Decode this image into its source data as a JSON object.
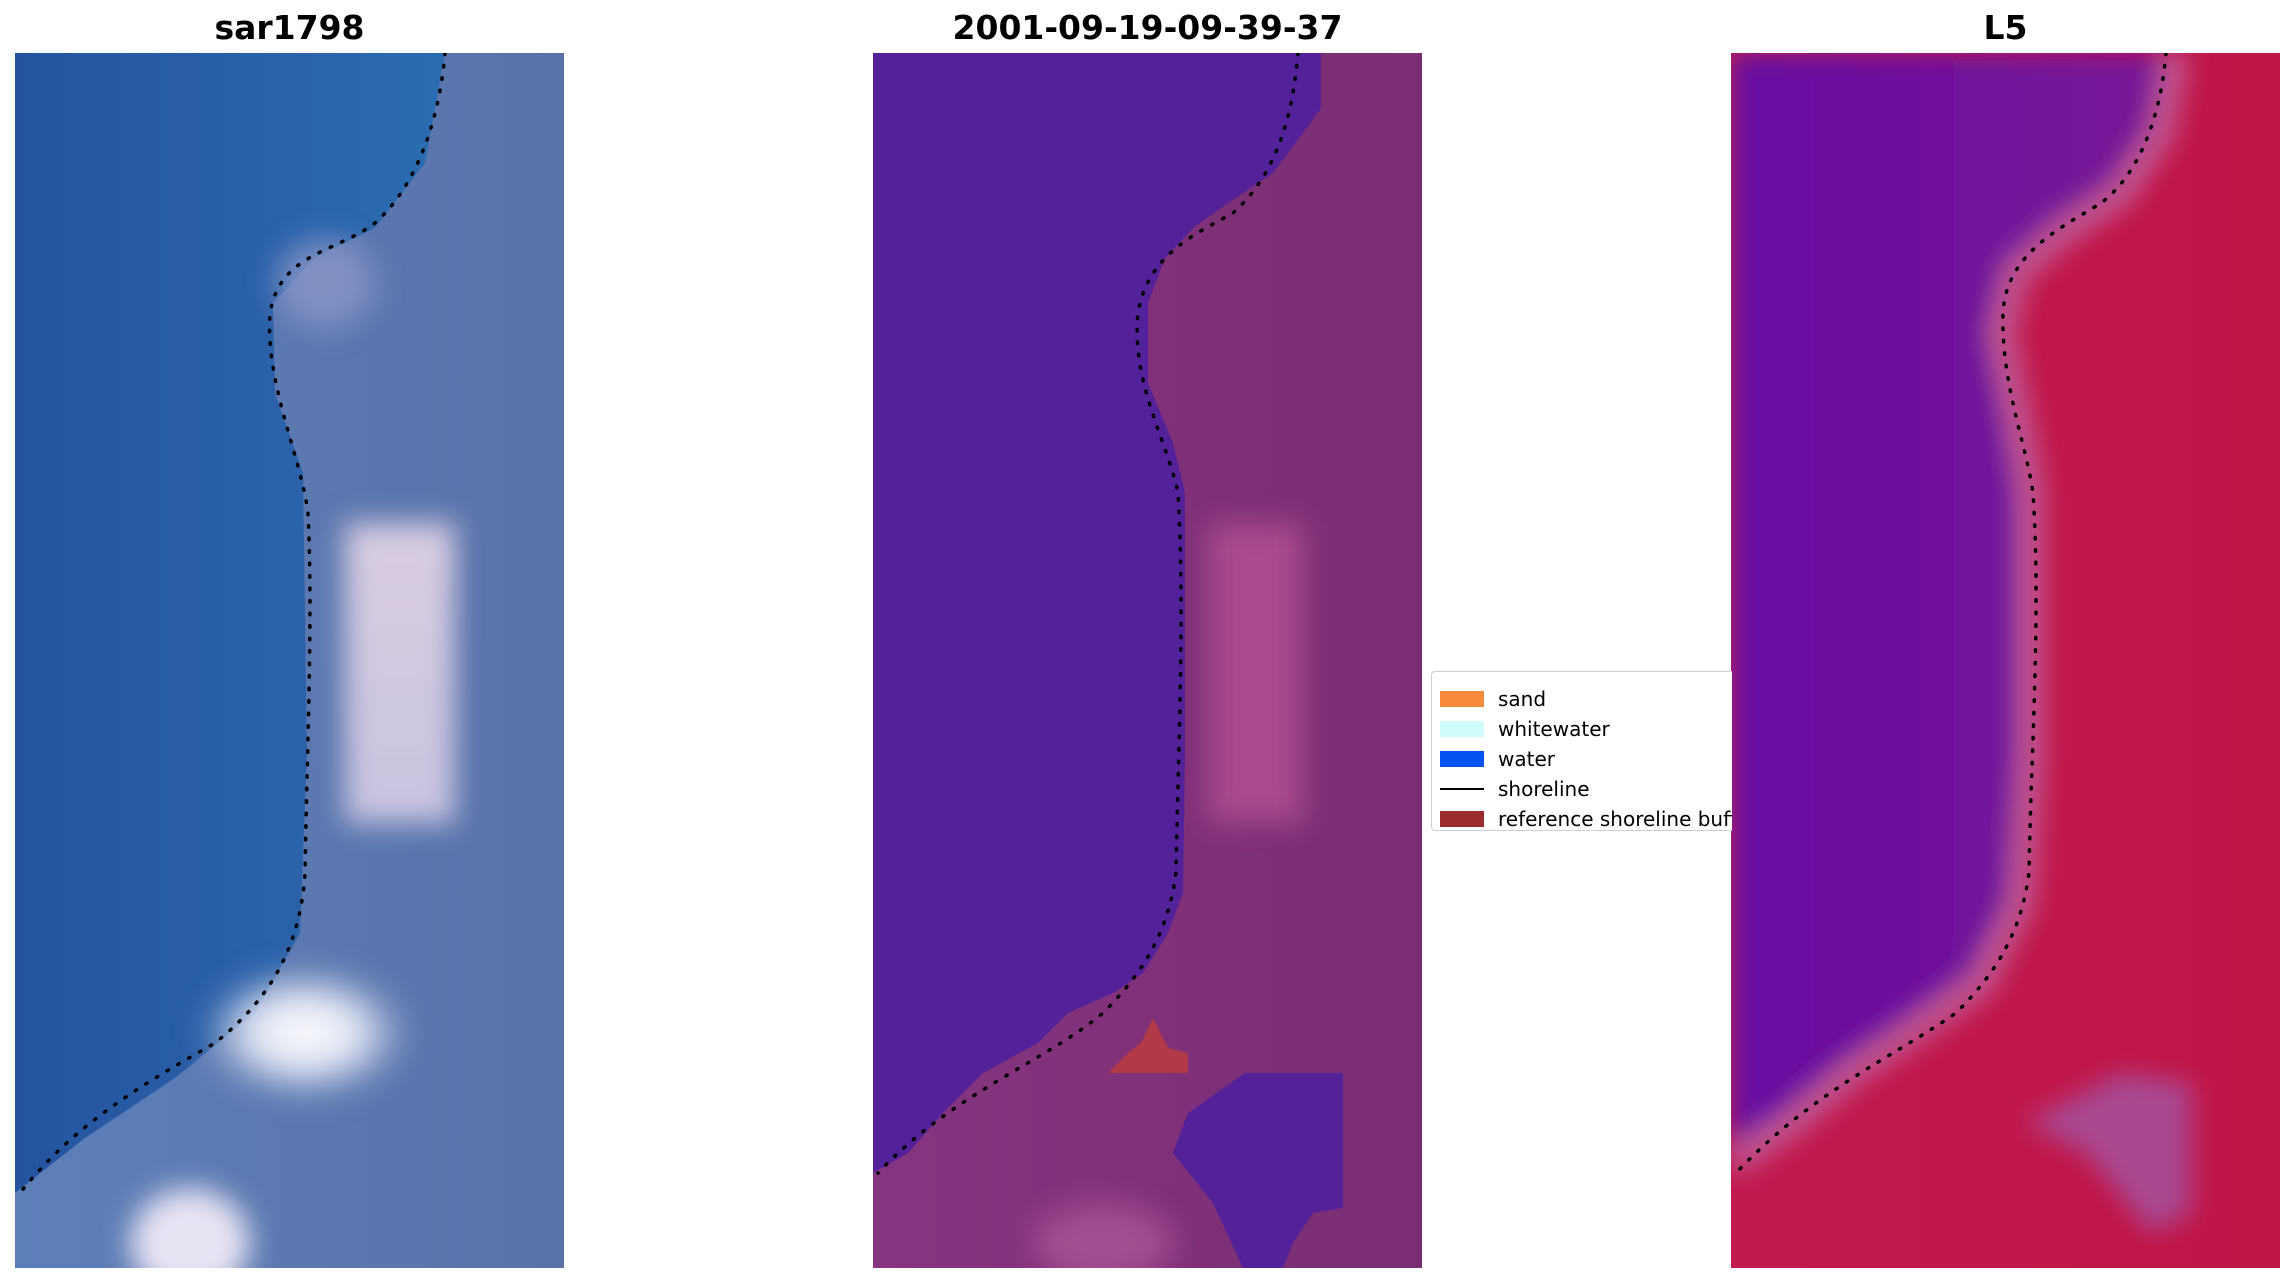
{
  "panels": [
    {
      "title": "sar1798",
      "image": "rgb satellite image with detected shoreline"
    },
    {
      "title": "2001-09-19-09-39-37",
      "image": "classified image overlay with shoreline"
    },
    {
      "title": "L5",
      "image": "water index image with shoreline"
    }
  ],
  "legend": {
    "items": [
      {
        "label": "sand",
        "type": "patch",
        "color": "#f58b3b"
      },
      {
        "label": "whitewater",
        "type": "patch",
        "color": "#cdfcfb"
      },
      {
        "label": "water",
        "type": "patch",
        "color": "#0554f0"
      },
      {
        "label": "shoreline",
        "type": "line",
        "color": "#000000"
      },
      {
        "label": "reference shoreline buffer",
        "type": "patch",
        "color": "#9a2a2e"
      }
    ]
  },
  "colors": {
    "rgb_water": "#2a5ba8",
    "rgb_land": "#5f78ad",
    "class_water": "#53219a",
    "class_land": "#7a2d72",
    "class_buffer": "#b23a46",
    "index_water": "#6a119e",
    "index_land": "#c0164a"
  }
}
